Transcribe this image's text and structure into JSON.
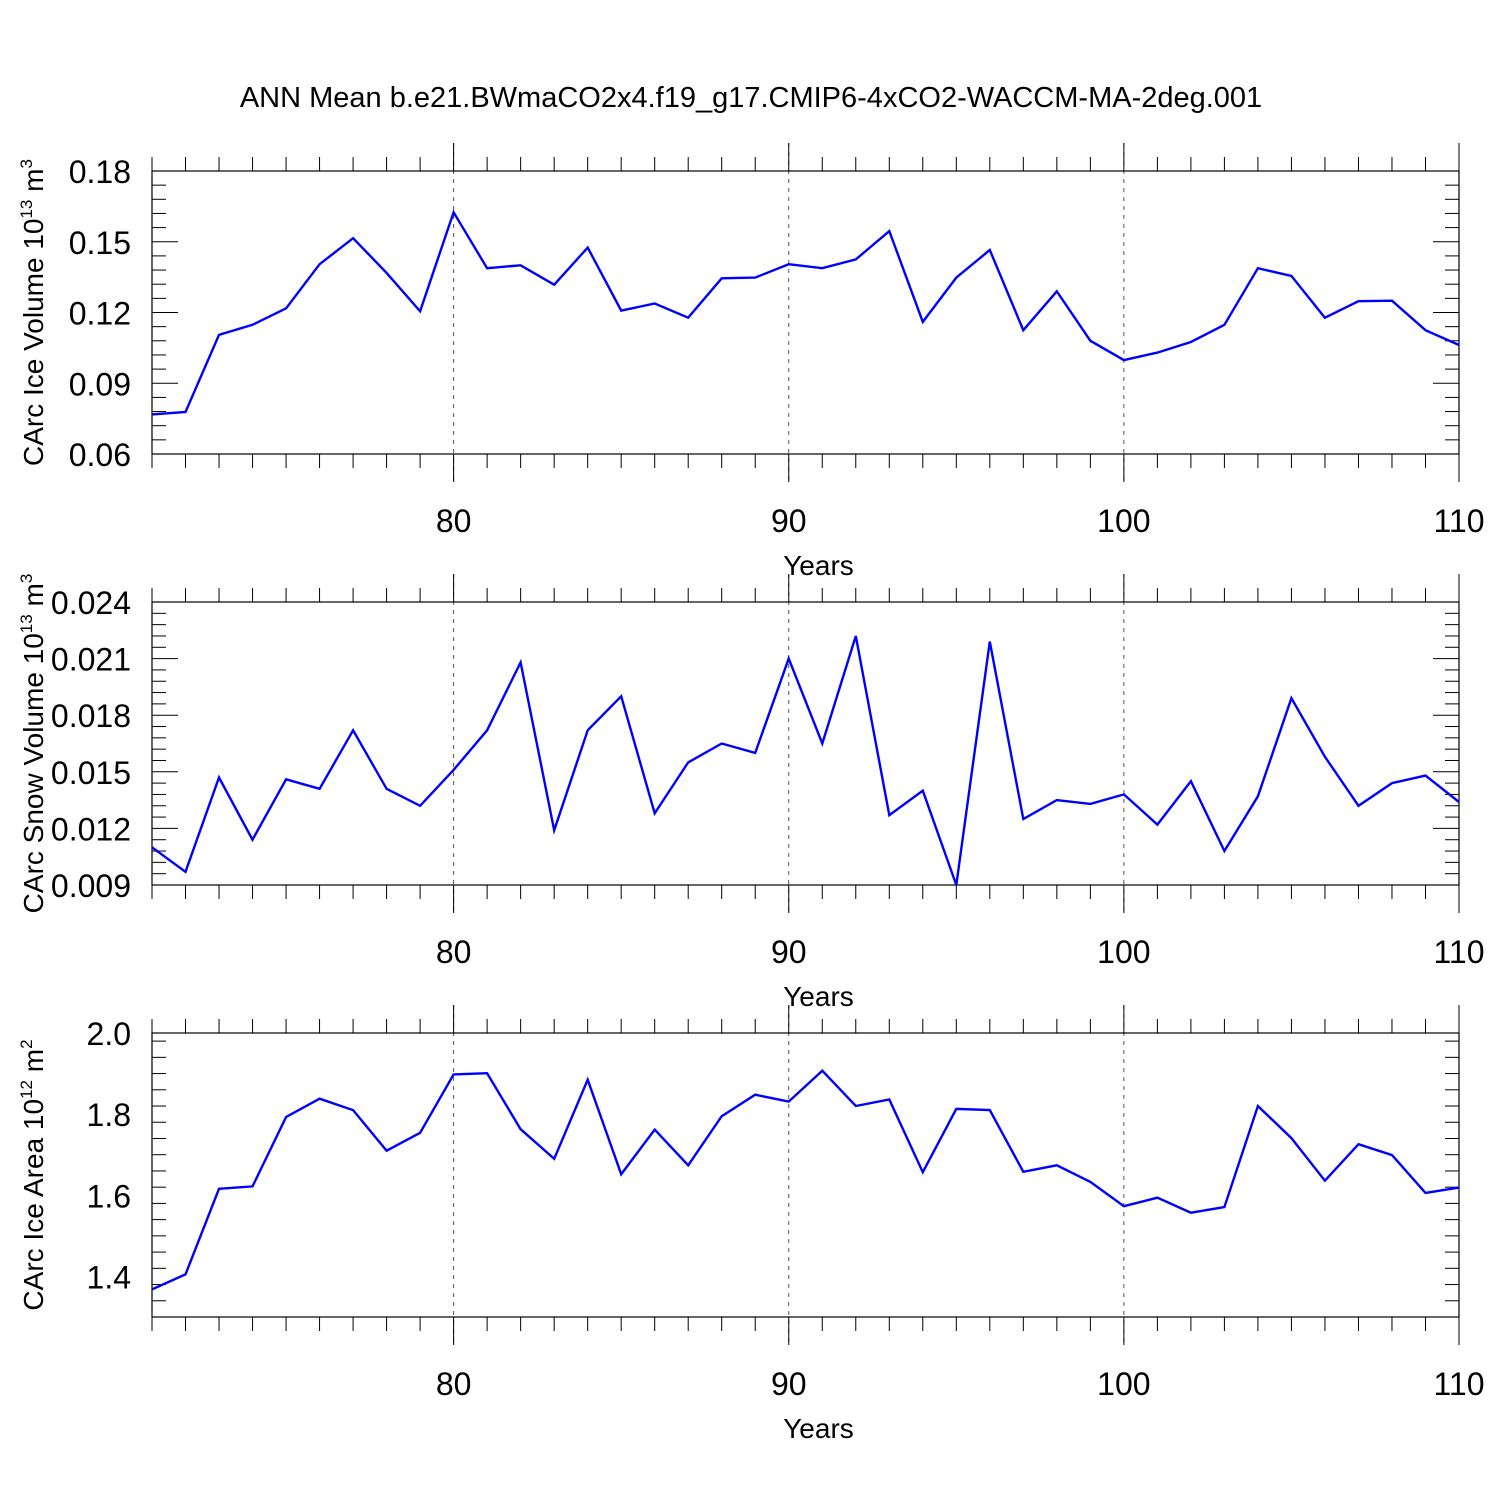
{
  "title": "ANN Mean b.e21.BWmaCO2x4.f19_g17.CMIP6-4xCO2-WACCM-MA-2deg.001",
  "colors": {
    "line": "#0000ff",
    "axis": "#000000",
    "grid": "#555555",
    "background": "#ffffff"
  },
  "chart_data": [
    {
      "type": "line",
      "ylabel": {
        "prefix": "CArc Ice Volume 10",
        "exponent": "13",
        "unit": " m",
        "unit_exp": "3"
      },
      "xlabel": "Years",
      "xlim": [
        71,
        110
      ],
      "ylim": [
        0.06,
        0.18
      ],
      "xticks": [
        80,
        90,
        100,
        110
      ],
      "xtick_labels": [
        "80",
        "90",
        "100",
        "110"
      ],
      "yticks": [
        0.06,
        0.09,
        0.12,
        0.15,
        0.18
      ],
      "ytick_labels": [
        "0.06",
        "0.09",
        "0.12",
        "0.15",
        "0.18"
      ],
      "grid_x": [
        80,
        90,
        100
      ],
      "x": [
        71,
        72,
        73,
        74,
        75,
        76,
        77,
        78,
        79,
        80,
        81,
        82,
        83,
        84,
        85,
        86,
        87,
        88,
        89,
        90,
        91,
        92,
        93,
        94,
        95,
        96,
        97,
        98,
        99,
        100,
        101,
        102,
        103,
        104,
        105,
        106,
        107,
        108,
        109,
        110
      ],
      "series": [
        {
          "name": "CArc Ice Volume",
          "values": [
            0.0768,
            0.0778,
            0.1105,
            0.1148,
            0.1218,
            0.1405,
            0.1515,
            0.1368,
            0.1205,
            0.1625,
            0.1388,
            0.14,
            0.1318,
            0.1475,
            0.1208,
            0.1238,
            0.1178,
            0.1345,
            0.1348,
            0.1405,
            0.1388,
            0.1425,
            0.1545,
            0.116,
            0.1348,
            0.1465,
            0.1125,
            0.129,
            0.108,
            0.0998,
            0.103,
            0.1075,
            0.1148,
            0.1388,
            0.1355,
            0.1178,
            0.1248,
            0.125,
            0.1125,
            0.1062
          ]
        }
      ]
    },
    {
      "type": "line",
      "ylabel": {
        "prefix": "CArc Snow Volume 10",
        "exponent": "13",
        "unit": " m",
        "unit_exp": "3"
      },
      "xlabel": "Years",
      "xlim": [
        71,
        110
      ],
      "ylim": [
        0.009,
        0.024
      ],
      "xticks": [
        80,
        90,
        100,
        110
      ],
      "xtick_labels": [
        "80",
        "90",
        "100",
        "110"
      ],
      "yticks": [
        0.009,
        0.012,
        0.015,
        0.018,
        0.021,
        0.024
      ],
      "ytick_labels": [
        "0.009",
        "0.012",
        "0.015",
        "0.018",
        "0.021",
        "0.024"
      ],
      "grid_x": [
        80,
        90,
        100
      ],
      "x": [
        71,
        72,
        73,
        74,
        75,
        76,
        77,
        78,
        79,
        80,
        81,
        82,
        83,
        84,
        85,
        86,
        87,
        88,
        89,
        90,
        91,
        92,
        93,
        94,
        95,
        96,
        97,
        98,
        99,
        100,
        101,
        102,
        103,
        104,
        105,
        106,
        107,
        108,
        109,
        110
      ],
      "series": [
        {
          "name": "CArc Snow Volume",
          "values": [
            0.011,
            0.0097,
            0.0147,
            0.0114,
            0.0146,
            0.0141,
            0.0172,
            0.0141,
            0.0132,
            0.0151,
            0.0172,
            0.0208,
            0.0119,
            0.0172,
            0.019,
            0.0128,
            0.0155,
            0.0165,
            0.016,
            0.021,
            0.0165,
            0.0222,
            0.0127,
            0.014,
            0.009,
            0.0219,
            0.0125,
            0.0135,
            0.0133,
            0.0138,
            0.0122,
            0.0145,
            0.0108,
            0.0137,
            0.0189,
            0.0158,
            0.0132,
            0.0144,
            0.0148,
            0.0134
          ]
        }
      ]
    },
    {
      "type": "line",
      "ylabel": {
        "prefix": "CArc Ice Area 10",
        "exponent": "12",
        "unit": " m",
        "unit_exp": "2"
      },
      "xlabel": "Years",
      "xlim": [
        71,
        110
      ],
      "ylim": [
        1.3,
        2.0
      ],
      "xticks": [
        80,
        90,
        100,
        110
      ],
      "xtick_labels": [
        "80",
        "90",
        "100",
        "110"
      ],
      "yticks": [
        1.4,
        1.6,
        1.8,
        2.0
      ],
      "ytick_labels": [
        "1.4",
        "1.6",
        "1.8",
        "2.0"
      ],
      "grid_x": [
        80,
        90,
        100
      ],
      "x": [
        71,
        72,
        73,
        74,
        75,
        76,
        77,
        78,
        79,
        80,
        81,
        82,
        83,
        84,
        85,
        86,
        87,
        88,
        89,
        90,
        91,
        92,
        93,
        94,
        95,
        96,
        97,
        98,
        99,
        100,
        101,
        102,
        103,
        104,
        105,
        106,
        107,
        108,
        109,
        110
      ],
      "series": [
        {
          "name": "CArc Ice Area",
          "values": [
            1.368,
            1.405,
            1.616,
            1.622,
            1.793,
            1.838,
            1.81,
            1.71,
            1.754,
            1.898,
            1.901,
            1.763,
            1.69,
            1.885,
            1.652,
            1.762,
            1.674,
            1.795,
            1.848,
            1.831,
            1.907,
            1.82,
            1.836,
            1.657,
            1.813,
            1.81,
            1.658,
            1.674,
            1.633,
            1.573,
            1.594,
            1.557,
            1.571,
            1.82,
            1.741,
            1.636,
            1.726,
            1.699,
            1.606,
            1.619
          ]
        }
      ]
    }
  ]
}
